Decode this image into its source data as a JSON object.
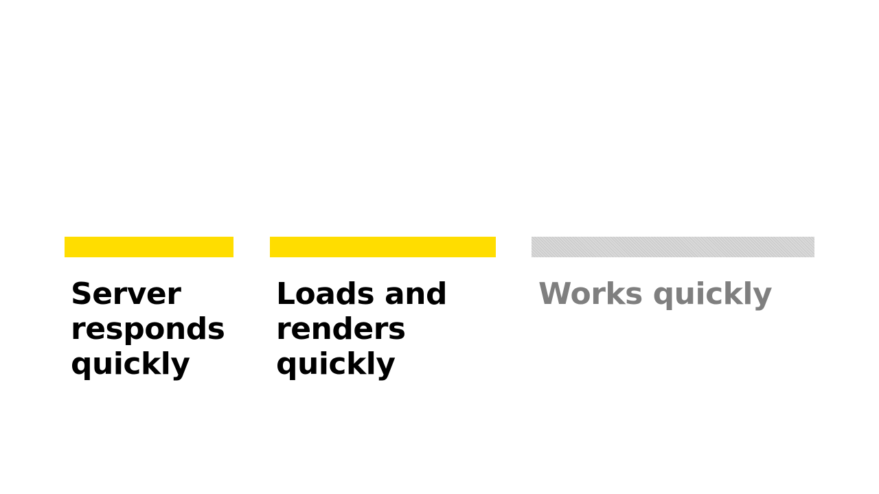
{
  "steps": [
    {
      "label": "Server\nresponds\nquickly",
      "state": "active"
    },
    {
      "label": "Loads and\nrenders\nquickly",
      "state": "active"
    },
    {
      "label": "Works quickly",
      "state": "inactive"
    }
  ],
  "colors": {
    "accent": "#FFDD00",
    "active_text": "#000000",
    "inactive_text": "#7f7f7f",
    "inactive_bar": "#d9d9d9"
  }
}
